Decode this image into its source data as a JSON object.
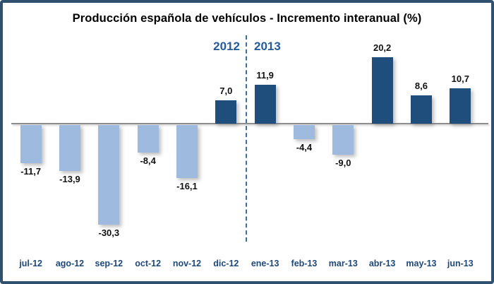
{
  "chart_data": {
    "type": "bar",
    "title": "Producción española de vehículos - Incremento interanual (%)",
    "categories": [
      "jul-12",
      "ago-12",
      "sep-12",
      "oct-12",
      "nov-12",
      "dic-12",
      "ene-13",
      "feb-13",
      "mar-13",
      "abr-13",
      "may-13",
      "jun-13"
    ],
    "values": [
      -11.7,
      -13.9,
      -30.3,
      -8.4,
      -16.1,
      7.0,
      11.9,
      -4.4,
      -9.0,
      20.2,
      8.6,
      10.7
    ],
    "value_labels": [
      "-11,7",
      "-13,9",
      "-30,3",
      "-8,4",
      "-16,1",
      "7,0",
      "11,9",
      "-4,4",
      "-9,0",
      "20,2",
      "8,6",
      "10,7"
    ],
    "year_labels": [
      "2012",
      "2013"
    ],
    "xlabel": "",
    "ylabel": "",
    "ylim": [
      -35,
      25
    ],
    "grid": false,
    "legend": false,
    "colors": {
      "positive_bar": "#1F4E7C",
      "negative_bar": "#9EBBDF",
      "axis_line": "#8E8E8E",
      "divider_line": "#3E6EA5",
      "value_text": "#111111",
      "month_text": "#1E4878",
      "year_text": "#255A9B",
      "frame_border": "#30506F",
      "title_text": "#000000"
    }
  }
}
